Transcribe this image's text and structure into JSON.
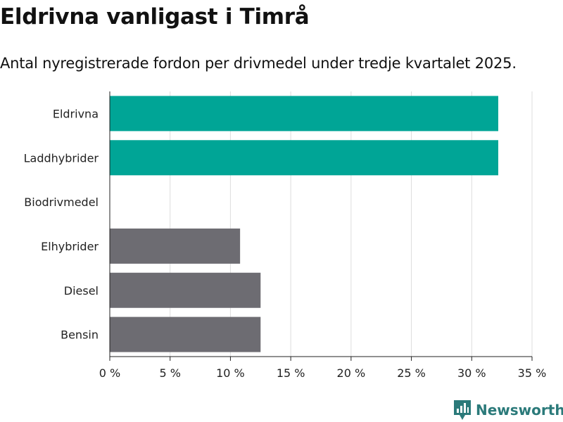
{
  "title": "Eldrivna vanligast i Timrå",
  "subtitle": "Antal nyregistrerade fordon per drivmedel under tredje kvartalet 2025.",
  "brand": {
    "name": "Newsworthy",
    "icon": "newsworthy-logo-icon"
  },
  "colors": {
    "highlight": "#00a596",
    "other": "#6d6c72",
    "grid": "#dddddd",
    "axis": "#222222"
  },
  "chart_data": {
    "type": "bar",
    "orientation": "horizontal",
    "title": "Eldrivna vanligast i Timrå",
    "subtitle": "Antal nyregistrerade fordon per drivmedel under tredje kvartalet 2025.",
    "categories": [
      "Eldrivna",
      "Laddhybrider",
      "Biodrivmedel",
      "Elhybrider",
      "Diesel",
      "Bensin"
    ],
    "values": [
      32.2,
      32.2,
      0,
      10.8,
      12.5,
      12.5
    ],
    "highlight": [
      true,
      true,
      false,
      false,
      false,
      false
    ],
    "unit": "%",
    "xlim": [
      0,
      35
    ],
    "ticks": [
      0,
      5,
      10,
      15,
      20,
      25,
      30,
      35
    ],
    "tick_labels": [
      "0 %",
      "5 %",
      "10 %",
      "15 %",
      "20 %",
      "25 %",
      "30 %",
      "35 %"
    ],
    "xlabel": "",
    "ylabel": "",
    "grid": true
  }
}
